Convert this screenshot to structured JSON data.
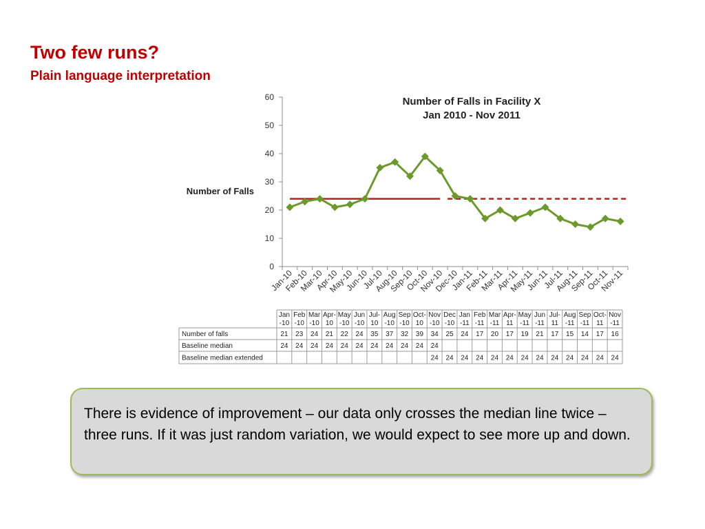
{
  "slide": {
    "title": "Two few runs?",
    "subtitle": "Plain language interpretation",
    "callout": "There is evidence of improvement – our data only crosses the median line twice – three runs. If it was just random variation, we would expect to see more up and down."
  },
  "chart_data": {
    "type": "line",
    "title_lines": [
      "Number of Falls in Facility X",
      "Jan 2010 - Nov 2011"
    ],
    "ylabel": "Number of Falls",
    "xlabel": "",
    "ylim": [
      0,
      60
    ],
    "yticks": [
      0,
      10,
      20,
      30,
      40,
      50,
      60
    ],
    "grid": false,
    "categories": [
      "Jan-10",
      "Feb-10",
      "Mar-10",
      "Apr-10",
      "May-10",
      "Jun-10",
      "Jul-10",
      "Aug-10",
      "Sep-10",
      "Oct-10",
      "Nov-10",
      "Dec-10",
      "Jan-11",
      "Feb-11",
      "Mar-11",
      "Apr-11",
      "May-11",
      "Jun-11",
      "Jul-11",
      "Aug-11",
      "Sep-11",
      "Oct-11",
      "Nov-11"
    ],
    "table_headers": [
      [
        "Jan",
        "-10"
      ],
      [
        "Feb",
        "-10"
      ],
      [
        "Mar",
        "-10"
      ],
      [
        "Apr-",
        "10"
      ],
      [
        "May",
        "-10"
      ],
      [
        "Jun",
        "-10"
      ],
      [
        "Jul-",
        "10"
      ],
      [
        "Aug",
        "-10"
      ],
      [
        "Sep",
        "-10"
      ],
      [
        "Oct-",
        "10"
      ],
      [
        "Nov",
        "-10"
      ],
      [
        "Dec",
        "-10"
      ],
      [
        "Jan",
        "-11"
      ],
      [
        "Feb",
        "-11"
      ],
      [
        "Mar",
        "-11"
      ],
      [
        "Apr-",
        "11"
      ],
      [
        "May",
        "-11"
      ],
      [
        "Jun",
        "-11"
      ],
      [
        "Jul-",
        "11"
      ],
      [
        "Aug",
        "-11"
      ],
      [
        "Sep",
        "-11"
      ],
      [
        "Oct-",
        "11"
      ],
      [
        "Nov",
        "-11"
      ]
    ],
    "series": [
      {
        "name": "Number of falls",
        "style": "line-markers",
        "color": "#6b9a2a",
        "values": [
          21,
          23,
          24,
          21,
          22,
          24,
          35,
          37,
          32,
          39,
          34,
          25,
          24,
          17,
          20,
          17,
          19,
          21,
          17,
          15,
          14,
          17,
          16
        ]
      },
      {
        "name": "Baseline median",
        "style": "solid",
        "color": "#b22222",
        "values": [
          24,
          24,
          24,
          24,
          24,
          24,
          24,
          24,
          24,
          24,
          24,
          null,
          null,
          null,
          null,
          null,
          null,
          null,
          null,
          null,
          null,
          null,
          null
        ]
      },
      {
        "name": "Baseline median extended",
        "style": "dashed",
        "color": "#b22222",
        "values": [
          null,
          null,
          null,
          null,
          null,
          null,
          null,
          null,
          null,
          null,
          24,
          24,
          24,
          24,
          24,
          24,
          24,
          24,
          24,
          24,
          24,
          24,
          24
        ]
      }
    ]
  }
}
